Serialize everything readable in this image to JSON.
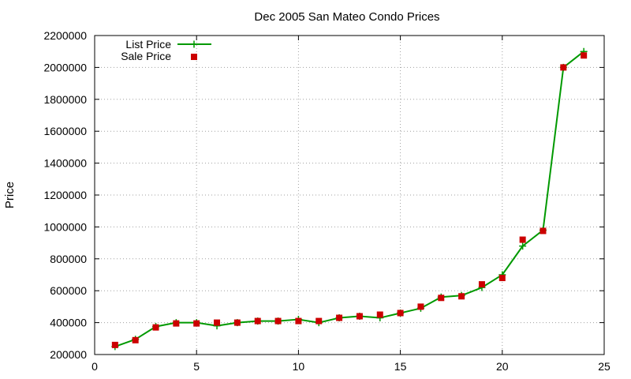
{
  "chart_data": {
    "type": "line",
    "title": "Dec 2005 San Mateo Condo Prices",
    "xlabel": "",
    "ylabel": "Price",
    "xlim": [
      0,
      25
    ],
    "ylim": [
      200000,
      2200000
    ],
    "xticks": [
      0,
      5,
      10,
      15,
      20,
      25
    ],
    "yticks": [
      200000,
      400000,
      600000,
      800000,
      1000000,
      1200000,
      1400000,
      1600000,
      1800000,
      2000000,
      2200000
    ],
    "grid": true,
    "legend_position": "top-left",
    "series": [
      {
        "name": "List Price",
        "style": "line with plus markers",
        "color": "#009900",
        "x": [
          1,
          2,
          3,
          4,
          5,
          6,
          7,
          8,
          9,
          10,
          11,
          12,
          13,
          14,
          15,
          16,
          17,
          18,
          19,
          20,
          21,
          22,
          23,
          24
        ],
        "values": [
          250000,
          295000,
          375000,
          400000,
          400000,
          380000,
          400000,
          410000,
          410000,
          420000,
          400000,
          430000,
          440000,
          430000,
          460000,
          490000,
          560000,
          570000,
          620000,
          700000,
          880000,
          980000,
          2000000,
          2100000
        ]
      },
      {
        "name": "Sale Price",
        "style": "square markers",
        "color": "#cc0000",
        "x": [
          1,
          2,
          3,
          4,
          5,
          6,
          7,
          8,
          9,
          10,
          11,
          12,
          13,
          14,
          15,
          16,
          17,
          18,
          19,
          20,
          21,
          22,
          23,
          24
        ],
        "values": [
          260000,
          290000,
          370000,
          395000,
          395000,
          400000,
          400000,
          410000,
          410000,
          410000,
          410000,
          430000,
          440000,
          450000,
          460000,
          500000,
          555000,
          565000,
          640000,
          680000,
          920000,
          975000,
          2000000,
          2075000
        ]
      }
    ]
  }
}
